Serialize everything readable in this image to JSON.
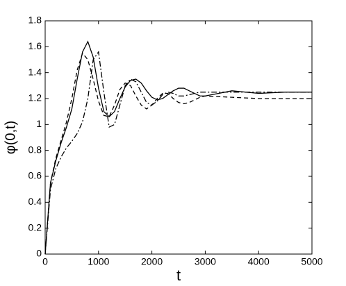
{
  "chart_data": {
    "type": "line",
    "xlabel": "t",
    "ylabel": "φ(0,t)",
    "x": [
      0,
      100,
      200,
      300,
      400,
      500,
      600,
      700,
      800,
      900,
      1000,
      1100,
      1200,
      1300,
      1400,
      1500,
      1600,
      1700,
      1800,
      1900,
      2000,
      2100,
      2200,
      2300,
      2400,
      2500,
      2600,
      2700,
      2800,
      2900,
      3000,
      3500,
      4000,
      4500,
      5000
    ],
    "series": [
      {
        "color": "#000000",
        "dash": "none",
        "values": [
          0,
          0.55,
          0.72,
          0.86,
          0.98,
          1.12,
          1.35,
          1.56,
          1.64,
          1.52,
          1.28,
          1.1,
          1.06,
          1.1,
          1.2,
          1.29,
          1.34,
          1.35,
          1.32,
          1.26,
          1.21,
          1.19,
          1.2,
          1.23,
          1.26,
          1.28,
          1.28,
          1.26,
          1.24,
          1.22,
          1.22,
          1.26,
          1.24,
          1.25,
          1.25
        ]
      },
      {
        "color": "#000000",
        "dash": "6,4",
        "values": [
          0,
          0.55,
          0.74,
          0.88,
          1.02,
          1.2,
          1.42,
          1.55,
          1.5,
          1.35,
          1.18,
          1.07,
          1.06,
          1.15,
          1.27,
          1.32,
          1.3,
          1.22,
          1.15,
          1.12,
          1.15,
          1.2,
          1.24,
          1.24,
          1.2,
          1.17,
          1.16,
          1.17,
          1.19,
          1.21,
          1.22,
          1.21,
          1.2,
          1.2,
          1.2
        ]
      },
      {
        "color": "#000000",
        "dash": "8,3,2,3",
        "values": [
          0,
          0.5,
          0.66,
          0.75,
          0.82,
          0.87,
          0.93,
          1.02,
          1.2,
          1.5,
          1.56,
          1.25,
          0.98,
          1.0,
          1.15,
          1.3,
          1.35,
          1.33,
          1.25,
          1.17,
          1.15,
          1.18,
          1.23,
          1.25,
          1.24,
          1.22,
          1.22,
          1.23,
          1.24,
          1.25,
          1.25,
          1.25,
          1.25,
          1.25,
          1.25
        ]
      }
    ],
    "xlim": [
      0,
      5000
    ],
    "xticks": [
      0,
      1000,
      2000,
      3000,
      4000,
      5000
    ],
    "ylim": [
      0,
      1.8
    ],
    "yticks": [
      0,
      0.2,
      0.4,
      0.6,
      0.8,
      1,
      1.2,
      1.4,
      1.6,
      1.8
    ],
    "grid": false
  }
}
